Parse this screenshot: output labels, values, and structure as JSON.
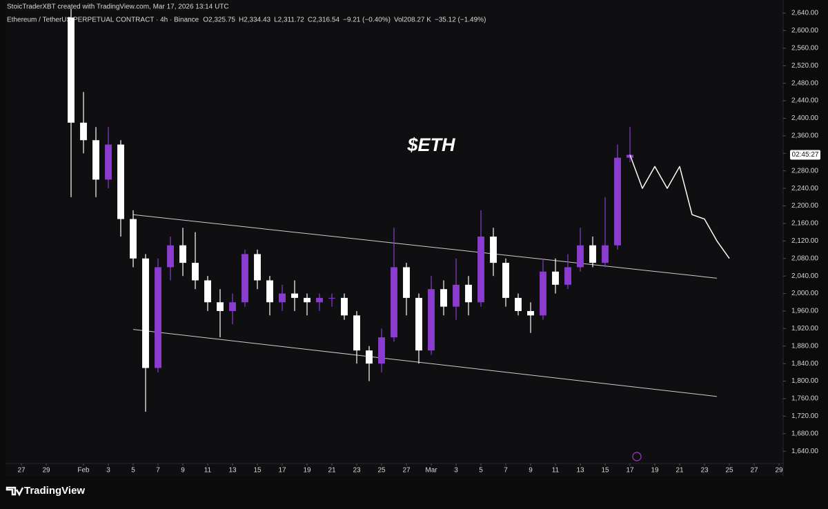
{
  "chart_data": {
    "type": "candlestick",
    "credit": "StoicTraderXBT created with TradingView.com, Mar 17, 2026 13:14 UTC",
    "title": "Ethereum / TetherUS PERPETUAL CONTRACT · 4h · Binance",
    "legend_values": [
      "O2,325.75",
      "H2,334.43",
      "L2,311.72",
      "C2,316.54",
      "−9.21 (−0.40%)",
      "Vol208.27 K",
      "−35.12 (−1.49%)"
    ],
    "annotation": "$ETH",
    "countdown": "02:45:27",
    "brand": "TradingView",
    "up_color": "#8a3ccf",
    "down_color": "#ffffff",
    "x": [
      "2026-01-31",
      "2026-02-01",
      "2026-02-02",
      "2026-02-03",
      "2026-02-04",
      "2026-02-05",
      "2026-02-06",
      "2026-02-07",
      "2026-02-08",
      "2026-02-09",
      "2026-02-10",
      "2026-02-11",
      "2026-02-12",
      "2026-02-13",
      "2026-02-14",
      "2026-02-15",
      "2026-02-16",
      "2026-02-17",
      "2026-02-18",
      "2026-02-19",
      "2026-02-20",
      "2026-02-21",
      "2026-02-22",
      "2026-02-23",
      "2026-02-24",
      "2026-02-25",
      "2026-02-26",
      "2026-02-27",
      "2026-02-28",
      "2026-03-01",
      "2026-03-02",
      "2026-03-03",
      "2026-03-04",
      "2026-03-05",
      "2026-03-06",
      "2026-03-07",
      "2026-03-08",
      "2026-03-09",
      "2026-03-10",
      "2026-03-11",
      "2026-03-12",
      "2026-03-13",
      "2026-03-14",
      "2026-03-15",
      "2026-03-16",
      "2026-03-17"
    ],
    "open": [
      2630,
      2390,
      2350,
      2260,
      2340,
      2170,
      2080,
      1830,
      2060,
      2110,
      2070,
      2030,
      1980,
      1960,
      1980,
      2090,
      2030,
      1980,
      2000,
      1990,
      1980,
      1990,
      1990,
      1950,
      1870,
      1840,
      1900,
      2060,
      1990,
      1870,
      2010,
      1970,
      2020,
      1980,
      2130,
      2070,
      1990,
      1960,
      1950,
      2050,
      2020,
      2060,
      2110,
      2070,
      2110,
      2310
    ],
    "high": [
      2650,
      2460,
      2380,
      2380,
      2350,
      2190,
      2090,
      2080,
      2130,
      2150,
      2140,
      2040,
      2010,
      2000,
      2100,
      2100,
      2040,
      2020,
      2030,
      2000,
      2000,
      2000,
      2000,
      1960,
      1880,
      1920,
      2150,
      2070,
      2000,
      2040,
      2030,
      2080,
      2040,
      2190,
      2150,
      2080,
      2000,
      1980,
      2080,
      2080,
      2090,
      2150,
      2130,
      2220,
      2340,
      2380
    ],
    "low": [
      2220,
      2320,
      2220,
      2240,
      2130,
      2060,
      1730,
      1820,
      2030,
      2040,
      2010,
      1960,
      1900,
      1930,
      1970,
      2010,
      1950,
      1960,
      1960,
      1950,
      1960,
      1970,
      1940,
      1840,
      1800,
      1820,
      1890,
      1950,
      1840,
      1860,
      1950,
      1940,
      1950,
      1970,
      2040,
      1970,
      1950,
      1910,
      1940,
      2000,
      2010,
      2050,
      2060,
      2060,
      2100,
      2300
    ],
    "close": [
      2390,
      2350,
      2260,
      2340,
      2170,
      2080,
      1830,
      2060,
      2110,
      2070,
      2030,
      1980,
      1960,
      1980,
      2090,
      2030,
      1980,
      2000,
      1990,
      1980,
      1990,
      1990,
      1950,
      1870,
      1840,
      1900,
      2060,
      1990,
      1870,
      2010,
      1970,
      2020,
      1980,
      2130,
      2070,
      1990,
      1960,
      1950,
      2050,
      2020,
      2060,
      2110,
      2070,
      2110,
      2310,
      2316.54
    ],
    "lines": [
      {
        "x": [
          "2026-02-05",
          "2026-03-24"
        ],
        "y": [
          2180,
          2035
        ]
      },
      {
        "x": [
          "2026-02-05",
          "2026-03-24"
        ],
        "y": [
          1918,
          1765
        ]
      }
    ],
    "projection": {
      "x": [
        "2026-03-17",
        "2026-03-18",
        "2026-03-19",
        "2026-03-20",
        "2026-03-21",
        "2026-03-22",
        "2026-03-23",
        "2026-03-24",
        "2026-03-25"
      ],
      "y": [
        2316.54,
        2240,
        2290,
        2240,
        2290,
        2180,
        2170,
        2120,
        2080
      ]
    },
    "xlim": [
      "2026-01-26",
      "2026-03-30"
    ],
    "xticks": [
      {
        "value": "2026-01-27",
        "label": "27"
      },
      {
        "value": "2026-01-29",
        "label": "29"
      },
      {
        "value": "2026-02-01",
        "label": "Feb"
      },
      {
        "value": "2026-02-03",
        "label": "3"
      },
      {
        "value": "2026-02-05",
        "label": "5"
      },
      {
        "value": "2026-02-07",
        "label": "7"
      },
      {
        "value": "2026-02-09",
        "label": "9"
      },
      {
        "value": "2026-02-11",
        "label": "11"
      },
      {
        "value": "2026-02-13",
        "label": "13"
      },
      {
        "value": "2026-02-15",
        "label": "15"
      },
      {
        "value": "2026-02-17",
        "label": "17"
      },
      {
        "value": "2026-02-19",
        "label": "19"
      },
      {
        "value": "2026-02-21",
        "label": "21"
      },
      {
        "value": "2026-02-23",
        "label": "23"
      },
      {
        "value": "2026-02-25",
        "label": "25"
      },
      {
        "value": "2026-02-27",
        "label": "27"
      },
      {
        "value": "2026-03-01",
        "label": "Mar"
      },
      {
        "value": "2026-03-03",
        "label": "3"
      },
      {
        "value": "2026-03-05",
        "label": "5"
      },
      {
        "value": "2026-03-07",
        "label": "7"
      },
      {
        "value": "2026-03-09",
        "label": "9"
      },
      {
        "value": "2026-03-11",
        "label": "11"
      },
      {
        "value": "2026-03-13",
        "label": "13"
      },
      {
        "value": "2026-03-15",
        "label": "15"
      },
      {
        "value": "2026-03-17",
        "label": "17"
      },
      {
        "value": "2026-03-19",
        "label": "19"
      },
      {
        "value": "2026-03-21",
        "label": "21"
      },
      {
        "value": "2026-03-23",
        "label": "23"
      },
      {
        "value": "2026-03-25",
        "label": "25"
      },
      {
        "value": "2026-03-27",
        "label": "27"
      },
      {
        "value": "2026-03-29",
        "label": "29"
      }
    ],
    "ylim": [
      1612,
      2670
    ],
    "yticks": [
      {
        "value": 1640,
        "label": "1,640.00"
      },
      {
        "value": 1680,
        "label": "1,680.00"
      },
      {
        "value": 1720,
        "label": "1,720.00"
      },
      {
        "value": 1760,
        "label": "1,760.00"
      },
      {
        "value": 1800,
        "label": "1,800.00"
      },
      {
        "value": 1840,
        "label": "1,840.00"
      },
      {
        "value": 1880,
        "label": "1,880.00"
      },
      {
        "value": 1920,
        "label": "1,920.00"
      },
      {
        "value": 1960,
        "label": "1,960.00"
      },
      {
        "value": 2000,
        "label": "2,000.00"
      },
      {
        "value": 2040,
        "label": "2,040.00"
      },
      {
        "value": 2080,
        "label": "2,080.00"
      },
      {
        "value": 2120,
        "label": "2,120.00"
      },
      {
        "value": 2160,
        "label": "2,160.00"
      },
      {
        "value": 2200,
        "label": "2,200.00"
      },
      {
        "value": 2240,
        "label": "2,240.00"
      },
      {
        "value": 2280,
        "label": "2,280.00"
      },
      {
        "value": 2320,
        "label": "2,320.00"
      },
      {
        "value": 2360,
        "label": "2,360.00"
      },
      {
        "value": 2400,
        "label": "2,400.00"
      },
      {
        "value": 2440,
        "label": "2,440.00"
      },
      {
        "value": 2480,
        "label": "2,480.00"
      },
      {
        "value": 2520,
        "label": "2,520.00"
      },
      {
        "value": 2560,
        "label": "2,560.00"
      },
      {
        "value": 2600,
        "label": "2,600.00"
      },
      {
        "value": 2640,
        "label": "2,640.00"
      }
    ]
  }
}
